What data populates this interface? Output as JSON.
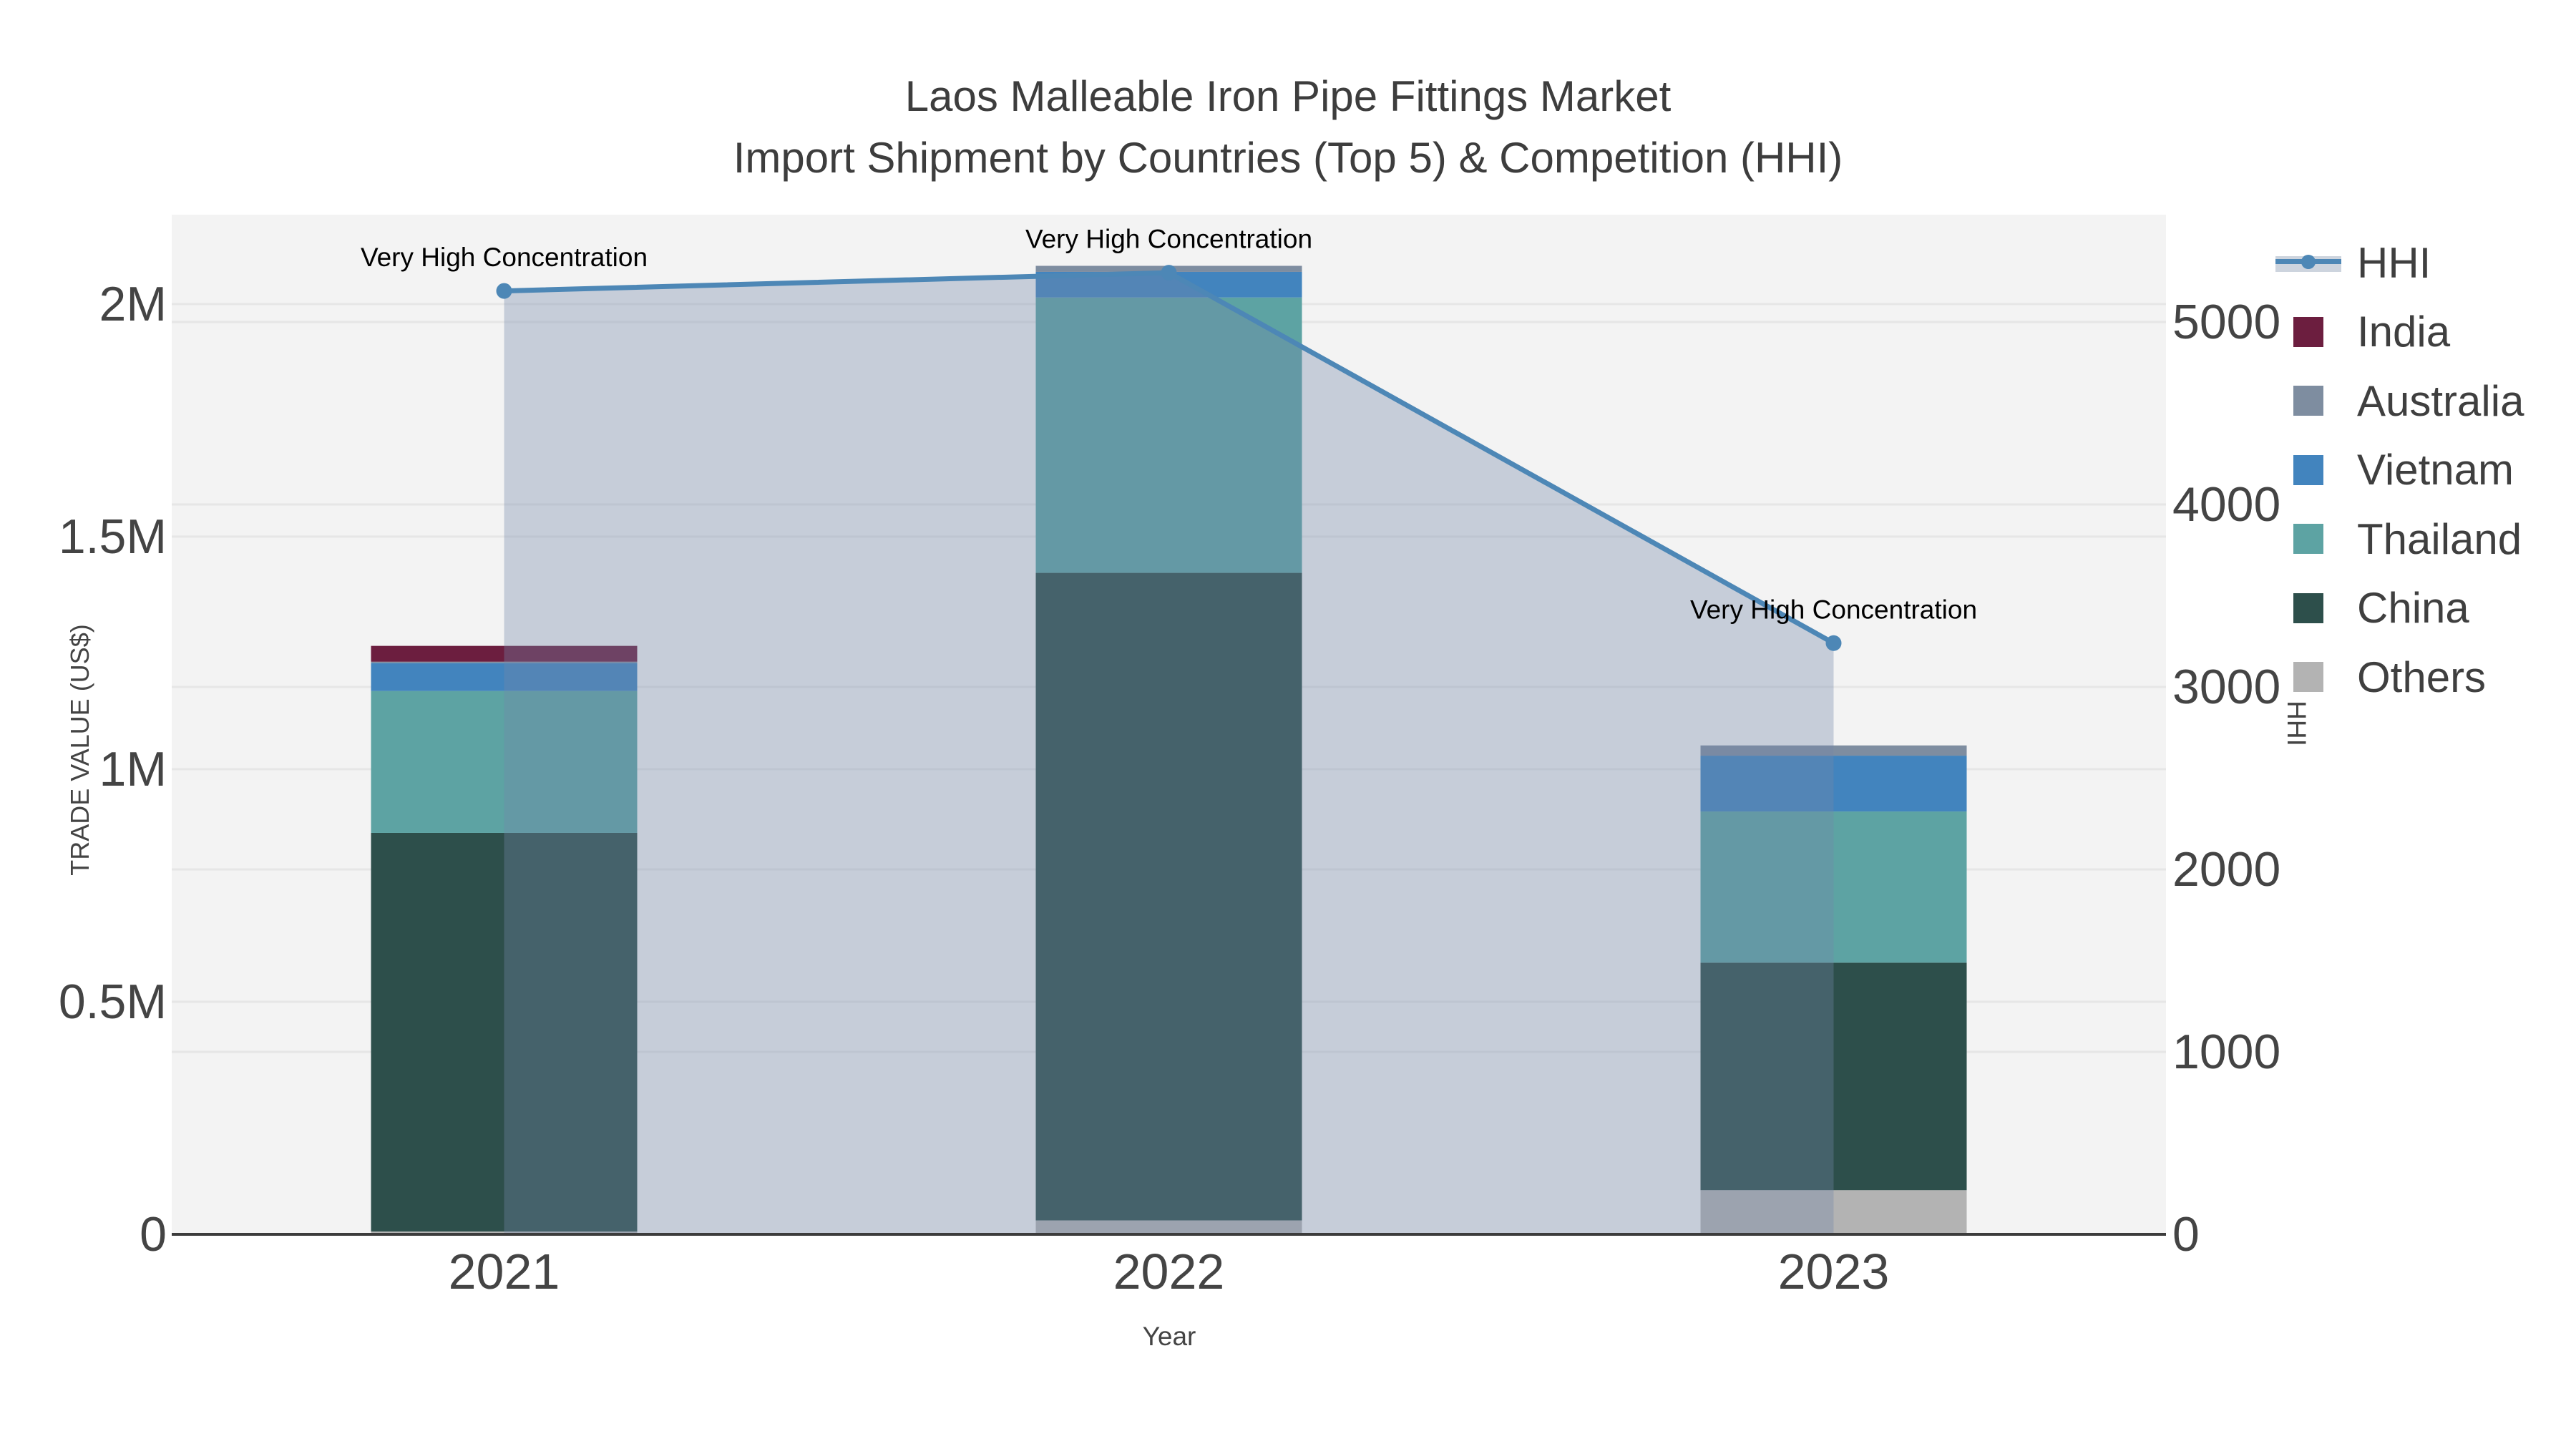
{
  "title": {
    "line1": "Laos Malleable Iron Pipe Fittings Market",
    "line2": "Import Shipment by Countries (Top 5) & Competition (HHI)"
  },
  "axes": {
    "x": {
      "title": "Year",
      "tick_labels": [
        "2021",
        "2022",
        "2023"
      ]
    },
    "y_left": {
      "title": "TRADE VALUE (US$)",
      "tick_labels": [
        "2M",
        "1.5M",
        "1M",
        "0.5M",
        "0"
      ],
      "tick_values": [
        2000000,
        1500000,
        1000000,
        500000,
        0
      ]
    },
    "y_right": {
      "title": "HHI",
      "tick_labels": [
        "5000",
        "4000",
        "3000",
        "2000",
        "1000",
        "0"
      ],
      "tick_values": [
        5000,
        4000,
        3000,
        2000,
        1000,
        0
      ]
    }
  },
  "legend": [
    {
      "label": "HHI",
      "type": "line",
      "color": "#4d87b6"
    },
    {
      "label": "India",
      "type": "swatch",
      "color": "#6c1e3f"
    },
    {
      "label": "Australia",
      "type": "swatch",
      "color": "#7e8da0"
    },
    {
      "label": "Vietnam",
      "type": "swatch",
      "color": "#4284be"
    },
    {
      "label": "Thailand",
      "type": "swatch",
      "color": "#5da3a3"
    },
    {
      "label": "China",
      "type": "swatch",
      "color": "#2d4f4b"
    },
    {
      "label": "Others",
      "type": "swatch",
      "color": "#b3b3b3"
    }
  ],
  "annotations": [
    {
      "text": "Very High Concentration",
      "category": "2021"
    },
    {
      "text": "Very High Concentration",
      "category": "2022"
    },
    {
      "text": "Very High Concentration",
      "category": "2023"
    }
  ],
  "colors": {
    "plot_bg": "#f3f3f3",
    "grid": "#e6e6e6",
    "axis_line": "#3c3c3c",
    "hhi_line": "#4d87b6",
    "hhi_fill": "rgba(115,135,168,0.35)"
  },
  "chart_data": {
    "type": "bar+line",
    "title": "Laos Malleable Iron Pipe Fittings Market — Import Shipment by Countries (Top 5) & Competition (HHI)",
    "categories": [
      "2021",
      "2022",
      "2023"
    ],
    "stack_order_bottom_to_top": [
      "Others",
      "China",
      "Thailand",
      "Vietnam",
      "Australia",
      "India"
    ],
    "bar_series": [
      {
        "name": "India",
        "color": "#6c1e3f",
        "values": [
          34000,
          0,
          0
        ]
      },
      {
        "name": "Australia",
        "color": "#7e8da0",
        "values": [
          3000,
          13000,
          22000
        ]
      },
      {
        "name": "Vietnam",
        "color": "#4284be",
        "values": [
          60000,
          55000,
          120000
        ]
      },
      {
        "name": "Thailand",
        "color": "#5da3a3",
        "values": [
          305000,
          592000,
          325000
        ]
      },
      {
        "name": "China",
        "color": "#2d4f4b",
        "values": [
          857000,
          1392000,
          489000
        ]
      },
      {
        "name": "Others",
        "color": "#b3b3b3",
        "values": [
          6000,
          30000,
          95000
        ]
      }
    ],
    "line_series": {
      "name": "HHI",
      "color": "#4d87b6",
      "fill_color": "rgba(115,135,168,0.35)",
      "values": [
        5170,
        5270,
        3240
      ]
    },
    "xlabel": "Year",
    "ylabel_left": "TRADE VALUE (US$)",
    "ylabel_right": "HHI",
    "ylim_left": [
      0,
      2192000
    ],
    "ylim_right": [
      0,
      5588
    ],
    "grid": true,
    "legend_position": "right"
  }
}
